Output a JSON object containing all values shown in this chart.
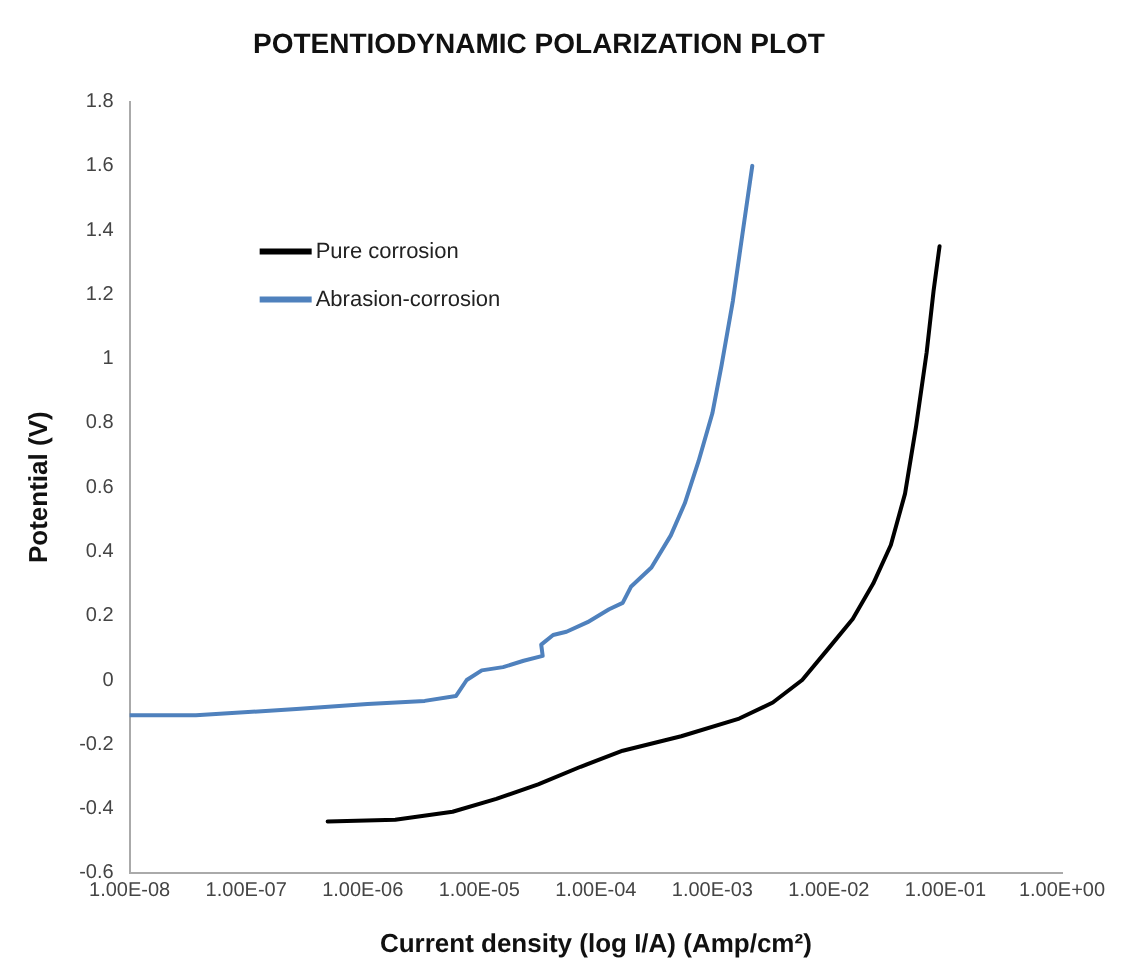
{
  "chart_data": {
    "type": "line",
    "title": "POTENTIODYNAMIC POLARIZATION PLOT",
    "xlabel": "Current density (log I/A) (Amp/cm²)",
    "ylabel": "Potential (V)",
    "log": "x",
    "xlim": [
      1e-08,
      1
    ],
    "ylim": [
      -0.6,
      1.8
    ],
    "xticks": [
      {
        "value": 1e-08,
        "label": "1.00E-08"
      },
      {
        "value": 1e-07,
        "label": "1.00E-07"
      },
      {
        "value": 1e-06,
        "label": "1.00E-06"
      },
      {
        "value": 1e-05,
        "label": "1.00E-05"
      },
      {
        "value": 0.0001,
        "label": "1.00E-04"
      },
      {
        "value": 0.001,
        "label": "1.00E-03"
      },
      {
        "value": 0.01,
        "label": "1.00E-02"
      },
      {
        "value": 0.1,
        "label": "1.00E-01"
      },
      {
        "value": 1,
        "label": "1.00E+00"
      }
    ],
    "yticks": [
      -0.6,
      -0.4,
      -0.2,
      0,
      0.2,
      0.4,
      0.6,
      0.8,
      1,
      1.2,
      1.4,
      1.6,
      1.8
    ],
    "grid": false,
    "legend": "top left",
    "marker": "none",
    "line_style": "solid",
    "series": [
      {
        "name": "Pure corrosion",
        "color": "#000000",
        "x": [
          5e-07,
          1.9e-06,
          5.9e-06,
          1.4e-05,
          3.2e-05,
          7.4e-05,
          0.00017,
          0.00054,
          0.0017,
          0.0033,
          0.0059,
          0.01,
          0.016,
          0.024,
          0.034,
          0.045,
          0.056,
          0.069,
          0.079,
          0.089
        ],
        "values": [
          -0.44,
          -0.435,
          -0.41,
          -0.37,
          -0.325,
          -0.27,
          -0.22,
          -0.175,
          -0.12,
          -0.07,
          0.0,
          0.1,
          0.19,
          0.3,
          0.42,
          0.58,
          0.79,
          1.02,
          1.21,
          1.35
        ]
      },
      {
        "name": "Abrasion-corrosion",
        "color": "#4f81bd",
        "x": [
          1e-08,
          3.7e-08,
          2.7e-07,
          1.1e-06,
          3.4e-06,
          6.3e-06,
          7.8e-06,
          1.05e-05,
          1.6e-05,
          2.4e-05,
          3.5e-05,
          3.4e-05,
          4.3e-05,
          5.6e-05,
          8.5e-05,
          0.00013,
          0.00017,
          0.0002,
          0.0003,
          0.00044,
          0.00058,
          0.00076,
          0.001,
          0.0012,
          0.0015,
          0.0019,
          0.0022
        ],
        "values": [
          -0.11,
          -0.11,
          -0.09,
          -0.075,
          -0.065,
          -0.05,
          0.0,
          0.03,
          0.04,
          0.06,
          0.075,
          0.11,
          0.14,
          0.15,
          0.18,
          0.22,
          0.24,
          0.29,
          0.35,
          0.45,
          0.55,
          0.68,
          0.83,
          0.98,
          1.18,
          1.44,
          1.6
        ]
      }
    ]
  }
}
